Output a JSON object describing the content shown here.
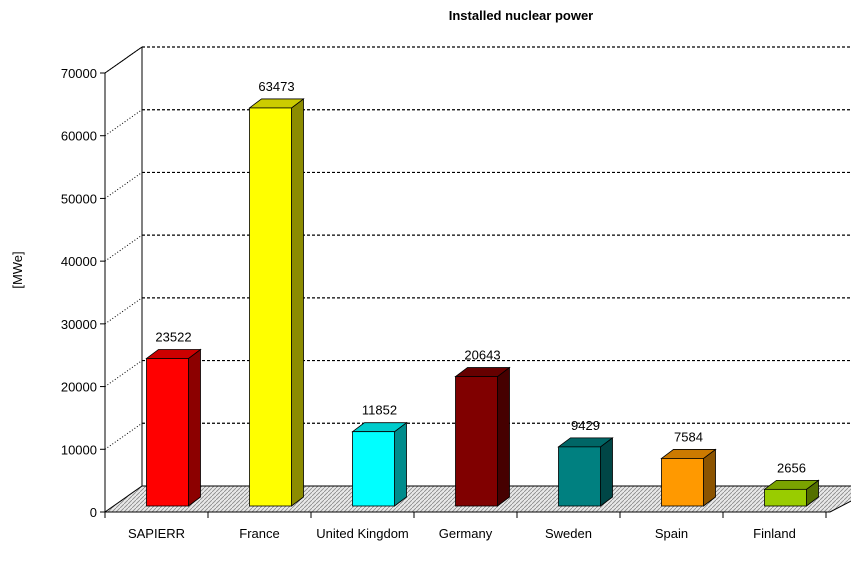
{
  "chart_data": {
    "type": "bar3d",
    "title": "Installed nuclear power",
    "y_label": "[MWe]",
    "categories": [
      "SAPIERR",
      "France",
      "United Kingdom",
      "Germany",
      "Sweden",
      "Spain",
      "Finland"
    ],
    "values": [
      23522,
      63473,
      11852,
      20643,
      9429,
      7584,
      2656
    ],
    "colors": [
      "#ff0000",
      "#ffff00",
      "#00ffff",
      "#800000",
      "#008080",
      "#ff9900",
      "#99cc00"
    ],
    "ylim": [
      0,
      70000
    ],
    "yticks": [
      0,
      10000,
      20000,
      30000,
      40000,
      50000,
      60000,
      70000
    ],
    "grid": true
  }
}
